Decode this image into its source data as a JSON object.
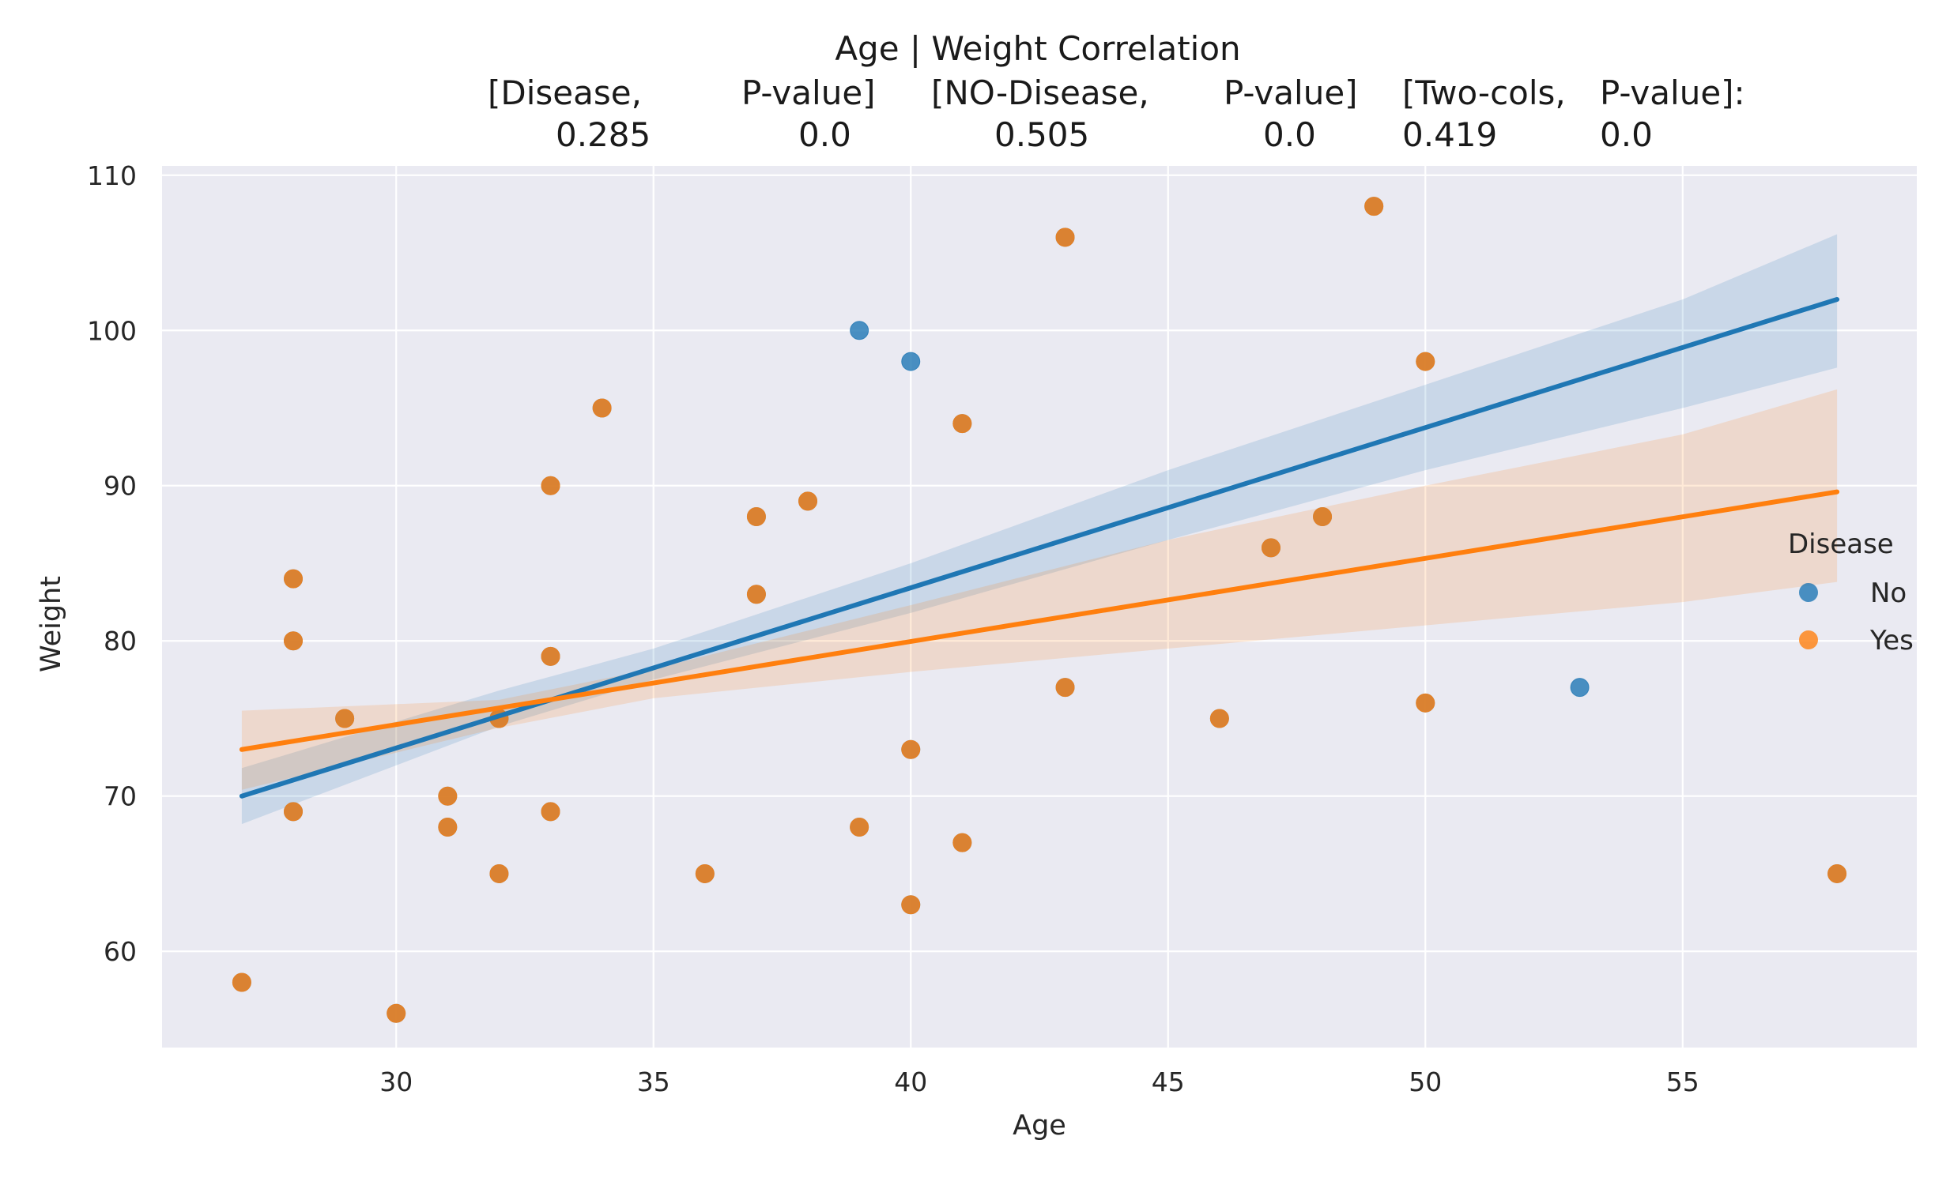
{
  "chart_data": {
    "type": "scatter",
    "title_lines": [
      "Age | Weight    Correlation",
      "[Disease,        P-value]   [NO-Disease,     P-value]   [Two-cols,  P-value]:",
      "0.285          0.0          0.505          0.0   0.419          0.0"
    ],
    "title_cells": [
      {
        "text": "[Disease,",
        "row": 1
      },
      {
        "text": "P-value]",
        "row": 1
      },
      {
        "text": "[NO-Disease,",
        "row": 1
      },
      {
        "text": "P-value]",
        "row": 1
      },
      {
        "text": "[Two-cols,",
        "row": 1
      },
      {
        "text": "P-value]:",
        "row": 1
      },
      {
        "text": "0.285",
        "row": 2
      },
      {
        "text": "0.0",
        "row": 2
      },
      {
        "text": "0.505",
        "row": 2
      },
      {
        "text": "0.0",
        "row": 2
      },
      {
        "text": "0.419",
        "row": 2
      },
      {
        "text": "0.0",
        "row": 2
      }
    ],
    "xlabel": "Age",
    "ylabel": "Weight",
    "xlim": [
      25.45,
      59.55
    ],
    "ylim": [
      53.8,
      110.6
    ],
    "xticks": [
      30,
      35,
      40,
      45,
      50,
      55
    ],
    "yticks": [
      60,
      70,
      80,
      90,
      100,
      110
    ],
    "grid": true,
    "background": "#eaeaf2",
    "legend": {
      "title": "Disease",
      "placement": "right",
      "entries": [
        {
          "label": "No",
          "color": "#1f77b4"
        },
        {
          "label": "Yes",
          "color": "#ff7f0e"
        }
      ]
    },
    "series": [
      {
        "name": "No",
        "color": "#1f77b4",
        "points": [
          [
            27,
            58
          ],
          [
            28,
            69
          ],
          [
            28,
            80
          ],
          [
            28,
            84
          ],
          [
            29,
            75
          ],
          [
            30,
            56
          ],
          [
            31,
            70
          ],
          [
            31,
            68
          ],
          [
            32,
            65
          ],
          [
            32,
            75
          ],
          [
            33,
            69
          ],
          [
            33,
            79
          ],
          [
            33,
            90
          ],
          [
            34,
            95
          ],
          [
            36,
            65
          ],
          [
            37,
            83
          ],
          [
            37,
            88
          ],
          [
            38,
            89
          ],
          [
            39,
            100
          ],
          [
            39,
            68
          ],
          [
            40,
            98
          ],
          [
            40,
            73
          ],
          [
            40,
            63
          ],
          [
            41,
            94
          ],
          [
            41,
            67
          ],
          [
            43,
            106
          ],
          [
            43,
            77
          ],
          [
            46,
            75
          ],
          [
            47,
            86
          ],
          [
            48,
            88
          ],
          [
            49,
            108
          ],
          [
            50,
            98
          ],
          [
            50,
            76
          ],
          [
            53,
            77
          ],
          [
            58,
            65
          ]
        ],
        "regression": {
          "x": [
            27,
            58
          ],
          "y": [
            70.0,
            102.0
          ]
        },
        "ci_lower": [
          [
            27,
            68.2
          ],
          [
            32,
            74.5
          ],
          [
            35,
            77.5
          ],
          [
            40,
            81.8
          ],
          [
            45,
            86.5
          ],
          [
            50,
            91.0
          ],
          [
            55,
            95.0
          ],
          [
            58,
            97.6
          ]
        ],
        "ci_upper": [
          [
            27,
            71.8
          ],
          [
            32,
            76.8
          ],
          [
            35,
            79.5
          ],
          [
            40,
            85.0
          ],
          [
            45,
            91.0
          ],
          [
            50,
            96.5
          ],
          [
            55,
            102.0
          ],
          [
            58,
            106.2
          ]
        ]
      },
      {
        "name": "Yes",
        "color": "#ff7f0e",
        "points": [
          [
            27,
            58
          ],
          [
            28,
            69
          ],
          [
            28,
            80
          ],
          [
            28,
            84
          ],
          [
            29,
            75
          ],
          [
            30,
            56
          ],
          [
            31,
            70
          ],
          [
            31,
            68
          ],
          [
            32,
            65
          ],
          [
            32,
            75
          ],
          [
            33,
            69
          ],
          [
            33,
            79
          ],
          [
            33,
            90
          ],
          [
            34,
            95
          ],
          [
            36,
            65
          ],
          [
            37,
            83
          ],
          [
            37,
            88
          ],
          [
            38,
            89
          ],
          [
            39,
            68
          ],
          [
            40,
            73
          ],
          [
            40,
            63
          ],
          [
            41,
            94
          ],
          [
            41,
            67
          ],
          [
            43,
            106
          ],
          [
            43,
            77
          ],
          [
            46,
            75
          ],
          [
            47,
            86
          ],
          [
            48,
            88
          ],
          [
            49,
            108
          ],
          [
            50,
            98
          ],
          [
            50,
            76
          ],
          [
            58,
            65
          ]
        ],
        "regression": {
          "x": [
            27,
            58
          ],
          "y": [
            73.0,
            89.6
          ]
        },
        "ci_lower": [
          [
            27,
            70.4
          ],
          [
            32,
            74.4
          ],
          [
            35,
            76.3
          ],
          [
            40,
            78.0
          ],
          [
            45,
            79.5
          ],
          [
            50,
            81.0
          ],
          [
            55,
            82.5
          ],
          [
            58,
            83.8
          ]
        ],
        "ci_upper": [
          [
            27,
            75.5
          ],
          [
            32,
            76.2
          ],
          [
            35,
            78.2
          ],
          [
            40,
            82.3
          ],
          [
            45,
            86.5
          ],
          [
            50,
            90.0
          ],
          [
            55,
            93.3
          ],
          [
            58,
            96.2
          ]
        ]
      }
    ]
  }
}
